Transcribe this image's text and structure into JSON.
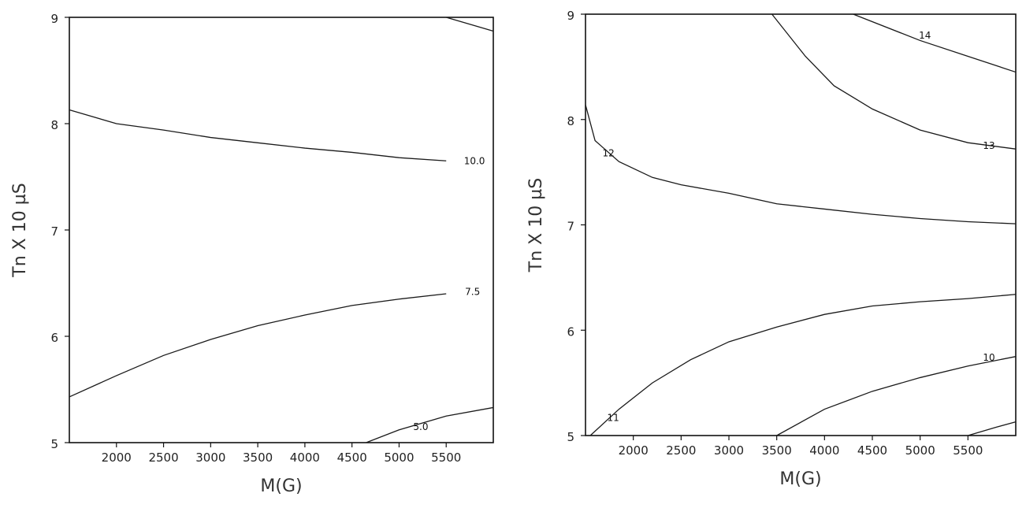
{
  "chart_data": [
    {
      "type": "contour",
      "xlabel": "M(G)",
      "ylabel": "Tn X 10 µS",
      "xlim": [
        1500,
        6000
      ],
      "ylim": [
        5,
        9
      ],
      "xticks": [
        2000,
        2500,
        3000,
        3500,
        4000,
        4500,
        5000,
        5500
      ],
      "xtick_labels": [
        "2000",
        "2500",
        "3000",
        "3500",
        "4000",
        "4500",
        "5000",
        "5500"
      ],
      "yticks": [
        5,
        6,
        7,
        8,
        9
      ],
      "ytick_labels": [
        "5",
        "6",
        "7",
        "8",
        "9"
      ],
      "contours": [
        {
          "level": "",
          "points": [
            [
              5500,
              9.0
            ],
            [
              6000,
              8.87
            ]
          ],
          "label_at": null
        },
        {
          "level": "10.0",
          "points": [
            [
              1500,
              8.13
            ],
            [
              2000,
              8.0
            ],
            [
              2500,
              7.94
            ],
            [
              3000,
              7.87
            ],
            [
              3500,
              7.82
            ],
            [
              4000,
              7.77
            ],
            [
              4500,
              7.73
            ],
            [
              5000,
              7.68
            ],
            [
              5500,
              7.65
            ]
          ],
          "label_at": [
            5800,
            7.65
          ]
        },
        {
          "level": "7.5",
          "points": [
            [
              1500,
              5.43
            ],
            [
              2000,
              5.63
            ],
            [
              2500,
              5.82
            ],
            [
              3000,
              5.97
            ],
            [
              3500,
              6.1
            ],
            [
              4000,
              6.2
            ],
            [
              4500,
              6.29
            ],
            [
              5000,
              6.35
            ],
            [
              5500,
              6.4
            ]
          ],
          "label_at": [
            5780,
            6.42
          ]
        },
        {
          "level": "5.0",
          "points": [
            [
              4650,
              5.0
            ],
            [
              5000,
              5.12
            ],
            [
              5500,
              5.25
            ],
            [
              6000,
              5.33
            ]
          ],
          "label_at": [
            5230,
            5.15
          ]
        }
      ]
    },
    {
      "type": "contour",
      "xlabel": "M(G)",
      "ylabel": "Tn X 10 µS",
      "xlim": [
        1500,
        6000
      ],
      "ylim": [
        5,
        9
      ],
      "xticks": [
        2000,
        2500,
        3000,
        3500,
        4000,
        4500,
        5000,
        5500
      ],
      "xtick_labels": [
        "2000",
        "2500",
        "3000",
        "3500",
        "4000",
        "4500",
        "5000",
        "5500"
      ],
      "yticks": [
        5,
        6,
        7,
        8,
        9
      ],
      "ytick_labels": [
        "5",
        "6",
        "7",
        "8",
        "9"
      ],
      "contours": [
        {
          "level": "14",
          "points": [
            [
              4300,
              9.0
            ],
            [
              5000,
              8.75
            ],
            [
              5500,
              8.6
            ],
            [
              6000,
              8.45
            ]
          ],
          "label_at": [
            5050,
            8.8
          ]
        },
        {
          "level": "13",
          "points": [
            [
              3450,
              9.0
            ],
            [
              3800,
              8.6
            ],
            [
              4100,
              8.32
            ],
            [
              4500,
              8.1
            ],
            [
              5000,
              7.9
            ],
            [
              5500,
              7.78
            ],
            [
              6000,
              7.72
            ]
          ],
          "label_at": [
            5720,
            7.75
          ]
        },
        {
          "level": "12",
          "points": [
            [
              1500,
              8.14
            ],
            [
              1600,
              7.8
            ],
            [
              1850,
              7.6
            ],
            [
              2200,
              7.45
            ],
            [
              2500,
              7.38
            ],
            [
              3000,
              7.3
            ],
            [
              3500,
              7.2
            ],
            [
              4000,
              7.15
            ],
            [
              4500,
              7.1
            ],
            [
              5000,
              7.06
            ],
            [
              5500,
              7.03
            ],
            [
              6000,
              7.01
            ]
          ],
          "label_at": [
            1740,
            7.68
          ]
        },
        {
          "level": "11",
          "points": [
            [
              1550,
              5.0
            ],
            [
              1850,
              5.25
            ],
            [
              2200,
              5.5
            ],
            [
              2600,
              5.72
            ],
            [
              3000,
              5.89
            ],
            [
              3500,
              6.03
            ],
            [
              4000,
              6.15
            ],
            [
              4500,
              6.23
            ],
            [
              5000,
              6.27
            ],
            [
              5500,
              6.3
            ],
            [
              6000,
              6.34
            ]
          ],
          "label_at": [
            1790,
            5.17
          ]
        },
        {
          "level": "10",
          "points": [
            [
              3500,
              5.0
            ],
            [
              4000,
              5.25
            ],
            [
              4500,
              5.42
            ],
            [
              5000,
              5.55
            ],
            [
              5500,
              5.66
            ],
            [
              6000,
              5.75
            ]
          ],
          "label_at": [
            5720,
            5.74
          ]
        },
        {
          "level": "",
          "points": [
            [
              5500,
              5.0
            ],
            [
              5800,
              5.08
            ],
            [
              6000,
              5.13
            ]
          ],
          "label_at": null
        }
      ]
    }
  ]
}
